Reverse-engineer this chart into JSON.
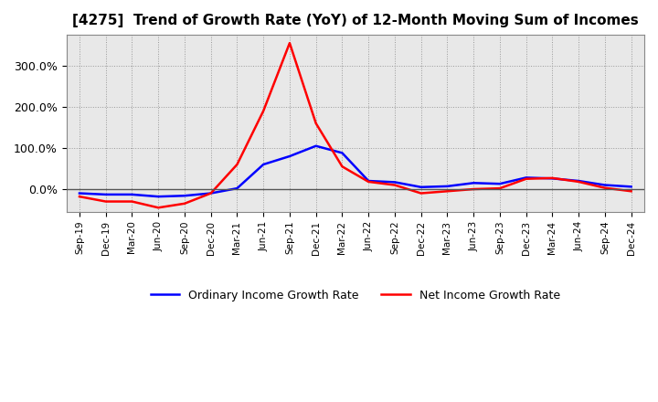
{
  "title": "[4275]  Trend of Growth Rate (YoY) of 12-Month Moving Sum of Incomes",
  "x_labels": [
    "Sep-19",
    "Dec-19",
    "Mar-20",
    "Jun-20",
    "Sep-20",
    "Dec-20",
    "Mar-21",
    "Jun-21",
    "Sep-21",
    "Dec-21",
    "Mar-22",
    "Jun-22",
    "Sep-22",
    "Dec-22",
    "Mar-23",
    "Jun-23",
    "Sep-23",
    "Dec-23",
    "Mar-24",
    "Jun-24",
    "Sep-24",
    "Dec-24"
  ],
  "ordinary_income": [
    -0.1,
    -0.13,
    -0.13,
    -0.18,
    -0.16,
    -0.1,
    0.02,
    0.6,
    0.8,
    1.05,
    0.88,
    0.2,
    0.17,
    0.05,
    0.07,
    0.15,
    0.13,
    0.28,
    0.26,
    0.2,
    0.1,
    0.06
  ],
  "net_income": [
    -0.18,
    -0.3,
    -0.3,
    -0.45,
    -0.35,
    -0.1,
    0.6,
    1.9,
    3.55,
    1.6,
    0.55,
    0.18,
    0.1,
    -0.1,
    -0.05,
    0.0,
    0.02,
    0.25,
    0.27,
    0.18,
    0.03,
    -0.05
  ],
  "ordinary_color": "#0000ff",
  "net_color": "#ff0000",
  "background_color": "#ffffff",
  "plot_bg_color": "#e8e8e8",
  "grid_color": "#999999",
  "yticks": [
    0.0,
    1.0,
    2.0,
    3.0
  ],
  "ytick_labels": [
    "0.0%",
    "100.0%",
    "200.0%",
    "300.0%"
  ],
  "ylim": [
    -0.55,
    3.75
  ],
  "legend_ordinary": "Ordinary Income Growth Rate",
  "legend_net": "Net Income Growth Rate"
}
